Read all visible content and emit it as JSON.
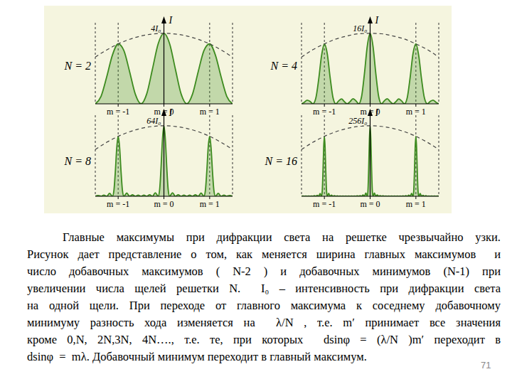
{
  "chart_data": [
    {
      "type": "area",
      "title": "N = 2",
      "y_label": "I",
      "xlim": [
        -1.5,
        1.5
      ],
      "xticks": [
        {
          "value": -1,
          "label": "m = -1"
        },
        {
          "value": 0,
          "label": "m = 0"
        },
        {
          "value": 1,
          "label": "m = 1"
        }
      ],
      "ylim": [
        0,
        4.6
      ],
      "grid": true,
      "tick_labels": "x",
      "annotations": [
        {
          "text": "4I₀",
          "x": 0,
          "y": 4
        }
      ],
      "series": [
        {
          "type": "area",
          "color": "#3d8b1f",
          "x": [
            -1.5,
            -1.375,
            -1.25,
            -1.125,
            -1,
            -0.875,
            -0.75,
            -0.625,
            -0.5,
            -0.375,
            -0.25,
            -0.125,
            0,
            0.125,
            0.25,
            0.375,
            0.5,
            0.625,
            0.75,
            0.875,
            1,
            1.125,
            1.25,
            1.375,
            1.5
          ],
          "values": [
            0,
            0.42,
            1.53,
            2.77,
            3.4,
            3.02,
            1.83,
            0.55,
            0,
            0.57,
            1.98,
            3.41,
            4,
            3.41,
            1.98,
            0.57,
            0,
            0.55,
            1.83,
            3.02,
            3.4,
            2.77,
            1.53,
            0.42,
            0
          ]
        },
        {
          "type": "line",
          "line_style": "dashed",
          "color": "#444444",
          "x": [
            -1.5,
            -1.25,
            -1,
            -0.75,
            -0.5,
            -0.25,
            0,
            0.25,
            0.5,
            0.75,
            1,
            1.25,
            1.5
          ],
          "values": [
            2.65,
            3.06,
            3.4,
            3.66,
            3.85,
            3.96,
            4,
            3.96,
            3.85,
            3.66,
            3.4,
            3.06,
            2.65
          ]
        }
      ]
    },
    {
      "type": "area",
      "title": "N = 4",
      "y_label": "I",
      "xlim": [
        -1.5,
        1.5
      ],
      "xticks": [
        {
          "value": -1,
          "label": "m = -1"
        },
        {
          "value": 0,
          "label": "m = 0"
        },
        {
          "value": 1,
          "label": "m = 1"
        }
      ],
      "ylim": [
        0,
        18.4
      ],
      "grid": true,
      "tick_labels": "x",
      "annotations": [
        {
          "text": "16I₀",
          "x": 0,
          "y": 16
        }
      ],
      "series": [
        {
          "type": "area",
          "color": "#3d8b1f",
          "x": [
            -1.5,
            -1.4375,
            -1.375,
            -1.3125,
            -1.25,
            -1.1875,
            -1.125,
            -1.0625,
            -1,
            -0.9375,
            -0.875,
            -0.8125,
            -0.75,
            -0.6875,
            -0.625,
            -0.5625,
            -0.5,
            -0.4375,
            -0.375,
            -0.3125,
            -0.25,
            -0.1875,
            -0.125,
            -0.0625,
            0,
            0.0625,
            0.125,
            0.1875,
            0.25,
            0.3125,
            0.375,
            0.4375,
            0.5,
            0.5625,
            0.625,
            0.6875,
            0.75,
            0.8125,
            0.875,
            0.9375,
            1,
            1.0625,
            1.125,
            1.1875,
            1.25,
            1.3125,
            1.375,
            1.4375,
            1.5
          ],
          "values": [
            0,
            0.36,
            0.84,
            0.53,
            0,
            1.28,
            5.53,
            10.9,
            13.6,
            11.4,
            6.04,
            1.46,
            0,
            0.67,
            1.1,
            0.49,
            0,
            0.51,
            1.15,
            0.71,
            0,
            1.61,
            6.81,
            13.1,
            16,
            13.1,
            6.81,
            1.61,
            0,
            0.71,
            1.15,
            0.51,
            0,
            0.49,
            1.1,
            0.67,
            0,
            1.46,
            6.04,
            11.4,
            13.6,
            10.9,
            5.53,
            1.28,
            0,
            0.53,
            0.84,
            0.36,
            0
          ]
        },
        {
          "type": "line",
          "line_style": "dashed",
          "color": "#444444",
          "x": [
            -1.5,
            -1.25,
            -1,
            -0.75,
            -0.5,
            -0.25,
            0,
            0.25,
            0.5,
            0.75,
            1,
            1.25,
            1.5
          ],
          "values": [
            10.6,
            12.3,
            13.6,
            14.7,
            15.4,
            15.9,
            16,
            15.9,
            15.4,
            14.7,
            13.6,
            12.3,
            10.6
          ]
        }
      ]
    },
    {
      "type": "area",
      "title": "N = 8",
      "y_label": "I",
      "xlim": [
        -1.5,
        1.5
      ],
      "xticks": [
        {
          "value": -1,
          "label": "m = -1"
        },
        {
          "value": 0,
          "label": "m = 0"
        },
        {
          "value": 1,
          "label": "m = 1"
        }
      ],
      "ylim": [
        0,
        73.6
      ],
      "grid": true,
      "tick_labels": "x",
      "annotations": [
        {
          "text": "64I₀",
          "x": 0,
          "y": 64
        }
      ],
      "series": [
        {
          "type": "area",
          "color": "#3d8b1f",
          "x": [
            -1.5,
            -1.4375,
            -1.375,
            -1.3125,
            -1.25,
            -1.1875,
            -1.125,
            -1.09375,
            -1.0625,
            -1.03125,
            -1,
            -0.96875,
            -0.9375,
            -0.90625,
            -0.875,
            -0.8125,
            -0.75,
            -0.6875,
            -0.625,
            -0.5625,
            -0.5,
            -0.4375,
            -0.375,
            -0.3125,
            -0.25,
            -0.1875,
            -0.125,
            -0.09375,
            -0.0625,
            -0.03125,
            0,
            0.03125,
            0.0625,
            0.09375,
            0.125,
            0.1875,
            0.25,
            0.3125,
            0.375,
            0.4375,
            0.5,
            0.5625,
            0.625,
            0.6875,
            0.75,
            0.8125,
            0.875,
            0.90625,
            0.9375,
            0.96875,
            1,
            1.03125,
            1.0625,
            1.09375,
            1.125,
            1.1875,
            1.25,
            1.3125,
            1.375,
            1.4375,
            1.5
          ],
          "values": [
            0,
            0.7,
            0,
            1.1,
            0,
            2.6,
            0,
            4.9,
            21.9,
            43.7,
            54.4,
            44.7,
            22.8,
            5.2,
            0,
            2.9,
            0,
            1.3,
            0,
            1,
            0,
            1,
            0,
            1.4,
            0,
            3.2,
            0,
            5.9,
            26.3,
            52,
            64,
            52,
            26.3,
            5.9,
            0,
            3.2,
            0,
            1.4,
            0,
            1,
            0,
            1,
            0,
            1.3,
            0,
            2.9,
            0,
            5.2,
            22.8,
            44.7,
            54.4,
            43.7,
            21.9,
            4.9,
            0,
            2.6,
            0,
            1.1,
            0,
            0.7,
            0
          ]
        },
        {
          "type": "line",
          "line_style": "dashed",
          "color": "#444444",
          "x": [
            -1.5,
            -1.25,
            -1,
            -0.75,
            -0.5,
            -0.25,
            0,
            0.25,
            0.5,
            0.75,
            1,
            1.25,
            1.5
          ],
          "values": [
            42.4,
            49,
            54.4,
            58.6,
            61.6,
            63.4,
            64,
            63.4,
            61.6,
            58.6,
            54.4,
            49,
            42.4
          ]
        }
      ]
    },
    {
      "type": "area",
      "title": "N = 16",
      "y_label": "I",
      "xlim": [
        -1.5,
        1.5
      ],
      "xticks": [
        {
          "value": -1,
          "label": "m = -1"
        },
        {
          "value": 0,
          "label": "m = 0"
        },
        {
          "value": 1,
          "label": "m = 1"
        }
      ],
      "ylim": [
        0,
        294.4
      ],
      "grid": true,
      "tick_labels": "x",
      "annotations": [
        {
          "text": "256I₀",
          "x": 0,
          "y": 256
        }
      ],
      "series": [
        {
          "type": "area",
          "color": "#3d8b1f",
          "x": [
            -1.5,
            -1.46875,
            -1.4375,
            -1.40625,
            -1.375,
            -1.34375,
            -1.3125,
            -1.28125,
            -1.25,
            -1.21875,
            -1.1875,
            -1.15625,
            -1.125,
            -1.09375,
            -1.0625,
            -1.046875,
            -1.03125,
            -1.015625,
            -1,
            -0.984375,
            -0.96875,
            -0.953125,
            -0.9375,
            -0.90625,
            -0.875,
            -0.84375,
            -0.8125,
            -0.78125,
            -0.75,
            -0.71875,
            -0.6875,
            -0.65625,
            -0.625,
            -0.59375,
            -0.5625,
            -0.53125,
            -0.5,
            -0.46875,
            -0.4375,
            -0.40625,
            -0.375,
            -0.34375,
            -0.3125,
            -0.28125,
            -0.25,
            -0.21875,
            -0.1875,
            -0.15625,
            -0.125,
            -0.09375,
            -0.0625,
            -0.046875,
            -0.03125,
            -0.015625,
            0,
            0.015625,
            0.03125,
            0.046875,
            0.0625,
            0.09375,
            0.125,
            0.15625,
            0.1875,
            0.21875,
            0.25,
            0.28125,
            0.3125,
            0.34375,
            0.375,
            0.40625,
            0.4375,
            0.46875,
            0.5,
            0.53125,
            0.5625,
            0.59375,
            0.625,
            0.65625,
            0.6875,
            0.71875,
            0.75,
            0.78125,
            0.8125,
            0.84375,
            0.875,
            0.90625,
            0.9375,
            0.953125,
            0.96875,
            0.984375,
            1,
            1.015625,
            1.03125,
            1.046875,
            1.0625,
            1.09375,
            1.125,
            1.15625,
            1.1875,
            1.21875,
            1.25,
            1.28125,
            1.3125,
            1.34375,
            1.375,
            1.40625,
            1.4375,
            1.46875,
            1.5
          ],
          "values": [
            0,
            0.7,
            0,
            0.7,
            0,
            0.9,
            0,
            1.2,
            0,
            1.9,
            0,
            3.6,
            0,
            9.8,
            0,
            19.2,
            87.4,
            175,
            217.6,
            177,
            89.3,
            19.9,
            0,
            10.4,
            0,
            3.9,
            0,
            2.2,
            0,
            1.5,
            0,
            1.1,
            0,
            1,
            0,
            1,
            0,
            1,
            0,
            1,
            0,
            1.2,
            0,
            1.6,
            0,
            2.5,
            0,
            4.5,
            0,
            11.9,
            0,
            23,
            104,
            207,
            256,
            207,
            104,
            23,
            0,
            11.9,
            0,
            4.5,
            0,
            2.5,
            0,
            1.6,
            0,
            1.2,
            0,
            1,
            0,
            1,
            0,
            1,
            0,
            1,
            0,
            1.1,
            0,
            1.5,
            0,
            2.2,
            0,
            3.9,
            0,
            10.4,
            0,
            19.9,
            89.3,
            177,
            217.6,
            175,
            87.4,
            19.2,
            0,
            9.8,
            0,
            3.6,
            0,
            1.9,
            0,
            1.2,
            0,
            0.9,
            0,
            0.7,
            0,
            0.7,
            0
          ]
        },
        {
          "type": "line",
          "line_style": "dashed",
          "color": "#444444",
          "x": [
            -1.5,
            -1.25,
            -1,
            -0.75,
            -0.5,
            -0.25,
            0,
            0.25,
            0.5,
            0.75,
            1,
            1.25,
            1.5
          ],
          "values": [
            169.6,
            196.1,
            217.6,
            234.5,
            246.4,
            253.7,
            256,
            253.7,
            246.4,
            234.5,
            217.6,
            196.1,
            169.6
          ]
        }
      ]
    }
  ],
  "text_lines": [
    "Главные максимумы при дифракции света на решетке чрезвычайно узки.",
    "Рисунок дает представление о том, как меняется ширина главных максимумов  и",
    "число добавочных максимумов ( N-2 ) и добавочных минимумов (N-1) при",
    "увеличении числа щелей решетки N.  I₀ – интенсивность при дифракции света",
    "на одной щели. При переходе от главного максимума к соседнему добавочному",
    "минимуму разность хода изменяется на  λ/N , т.е. m′ принимает все значения",
    "кроме 0,N, 2N,3N, 4N…., т.е. те, при которых  dsinφ = (λ/N )m′ переходит в",
    "dsinφ  =  mλ. Добавочный минимум переходит в главный максимум."
  ],
  "page_number": 71
}
